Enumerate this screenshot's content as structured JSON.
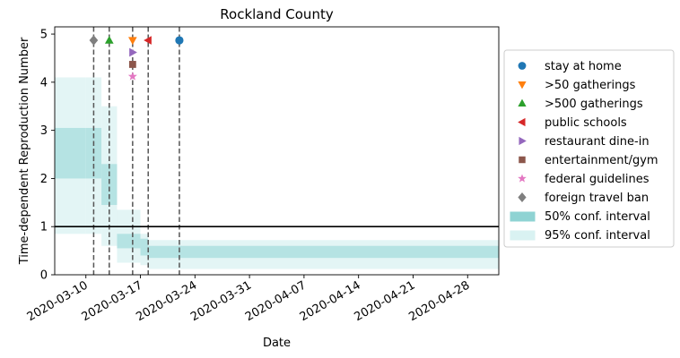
{
  "chart_data": {
    "type": "line",
    "title": "Rockland County",
    "xlabel": "Date",
    "ylabel": "Time-dependent Reproduction Number",
    "xlim": [
      "2020-03-06",
      "2020-05-02"
    ],
    "ylim": [
      0,
      5.15
    ],
    "x_ticks": [
      "2020-03-10",
      "2020-03-17",
      "2020-03-24",
      "2020-03-31",
      "2020-04-07",
      "2020-04-14",
      "2020-04-21",
      "2020-04-28"
    ],
    "y_ticks": [
      0,
      1,
      2,
      3,
      4,
      5
    ],
    "grid": false,
    "legend_position": "right, outside plot",
    "reference_line": {
      "y": 1,
      "color": "#000000"
    },
    "conf_bands": [
      {
        "start": "2020-03-06",
        "end": "2020-03-10",
        "ci50": [
          2.0,
          3.05
        ],
        "ci95": [
          0.85,
          4.1
        ]
      },
      {
        "start": "2020-03-10",
        "end": "2020-03-12",
        "ci50": [
          2.0,
          3.05
        ],
        "ci95": [
          0.85,
          4.1
        ]
      },
      {
        "start": "2020-03-12",
        "end": "2020-03-14",
        "ci50": [
          1.45,
          2.3
        ],
        "ci95": [
          0.6,
          3.5
        ]
      },
      {
        "start": "2020-03-14",
        "end": "2020-03-17",
        "ci50": [
          0.55,
          0.85
        ],
        "ci95": [
          0.25,
          1.35
        ]
      },
      {
        "start": "2020-03-17",
        "end": "2020-03-18",
        "ci50": [
          0.4,
          0.75
        ],
        "ci95": [
          0.2,
          0.85
        ]
      },
      {
        "start": "2020-03-18",
        "end": "2020-05-02",
        "ci50": [
          0.35,
          0.6
        ],
        "ci95": [
          0.12,
          0.72
        ]
      }
    ],
    "interventions": [
      {
        "name": "stay at home",
        "date": "2020-03-22",
        "y": 4.87,
        "marker": "circle",
        "color": "#1f77b4"
      },
      {
        "name": ">50 gatherings",
        "date": "2020-03-16",
        "y": 4.87,
        "marker": "triangle-down",
        "color": "#ff7f0e"
      },
      {
        "name": ">500 gatherings",
        "date": "2020-03-13",
        "y": 4.87,
        "marker": "triangle-up",
        "color": "#2ca02c"
      },
      {
        "name": "public schools",
        "date": "2020-03-18",
        "y": 4.87,
        "marker": "triangle-left",
        "color": "#d62728"
      },
      {
        "name": "restaurant dine-in",
        "date": "2020-03-16",
        "y": 4.62,
        "marker": "triangle-right",
        "color": "#9467bd"
      },
      {
        "name": "entertainment/gym",
        "date": "2020-03-16",
        "y": 4.37,
        "marker": "square",
        "color": "#8c564b"
      },
      {
        "name": "federal guidelines",
        "date": "2020-03-16",
        "y": 4.12,
        "marker": "star",
        "color": "#e377c2"
      },
      {
        "name": "foreign travel ban",
        "date": "2020-03-11",
        "y": 4.87,
        "marker": "diamond",
        "color": "#7f7f7f"
      }
    ],
    "band_legend": [
      {
        "name": "50% conf. interval",
        "color": "#8fd3d3"
      },
      {
        "name": "95% conf. interval",
        "color": "#d9f2f2"
      }
    ]
  }
}
